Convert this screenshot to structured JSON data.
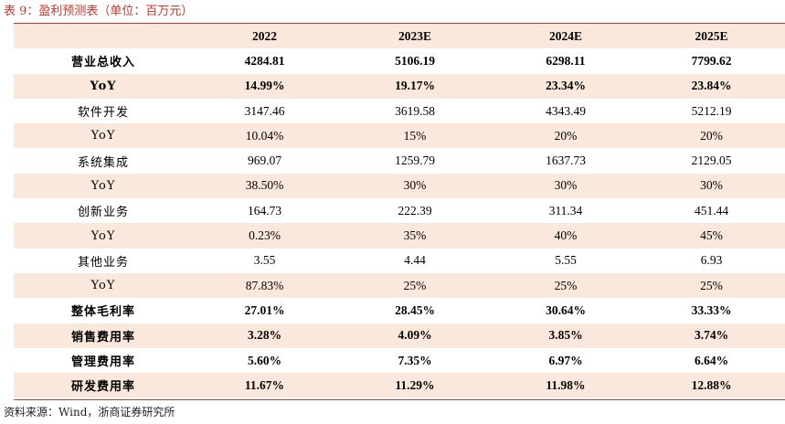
{
  "caption": "表 9：盈利预测表（单位：百万元）",
  "table": {
    "columns": [
      "",
      "2022",
      "2023E",
      "2024E",
      "2025E"
    ],
    "rows": [
      {
        "label": "营业总收入",
        "values": [
          "4284.81",
          "5106.19",
          "6298.11",
          "7799.62"
        ]
      },
      {
        "label": "YoY",
        "values": [
          "14.99%",
          "19.17%",
          "23.34%",
          "23.84%"
        ]
      },
      {
        "label": "软件开发",
        "values": [
          "3147.46",
          "3619.58",
          "4343.49",
          "5212.19"
        ]
      },
      {
        "label": "YoY",
        "values": [
          "10.04%",
          "15%",
          "20%",
          "20%"
        ]
      },
      {
        "label": "系统集成",
        "values": [
          "969.07",
          "1259.79",
          "1637.73",
          "2129.05"
        ]
      },
      {
        "label": "YoY",
        "values": [
          "38.50%",
          "30%",
          "30%",
          "30%"
        ]
      },
      {
        "label": "创新业务",
        "values": [
          "164.73",
          "222.39",
          "311.34",
          "451.44"
        ]
      },
      {
        "label": "YoY",
        "values": [
          "0.23%",
          "35%",
          "40%",
          "45%"
        ]
      },
      {
        "label": "其他业务",
        "values": [
          "3.55",
          "4.44",
          "5.55",
          "6.93"
        ]
      },
      {
        "label": "YoY",
        "values": [
          "87.83%",
          "25%",
          "25%",
          "25%"
        ]
      },
      {
        "label": "整体毛利率",
        "values": [
          "27.01%",
          "28.45%",
          "30.64%",
          "33.33%"
        ]
      },
      {
        "label": "销售费用率",
        "values": [
          "3.28%",
          "4.09%",
          "3.85%",
          "3.74%"
        ]
      },
      {
        "label": "管理费用率",
        "values": [
          "5.60%",
          "7.35%",
          "6.97%",
          "6.64%"
        ]
      },
      {
        "label": "研发费用率",
        "values": [
          "11.67%",
          "11.29%",
          "11.98%",
          "12.88%"
        ]
      }
    ]
  },
  "source": "资料来源：Wind，浙商证券研究所",
  "colors": {
    "accent": "#c0392b",
    "shade": "#fbe8dc"
  }
}
